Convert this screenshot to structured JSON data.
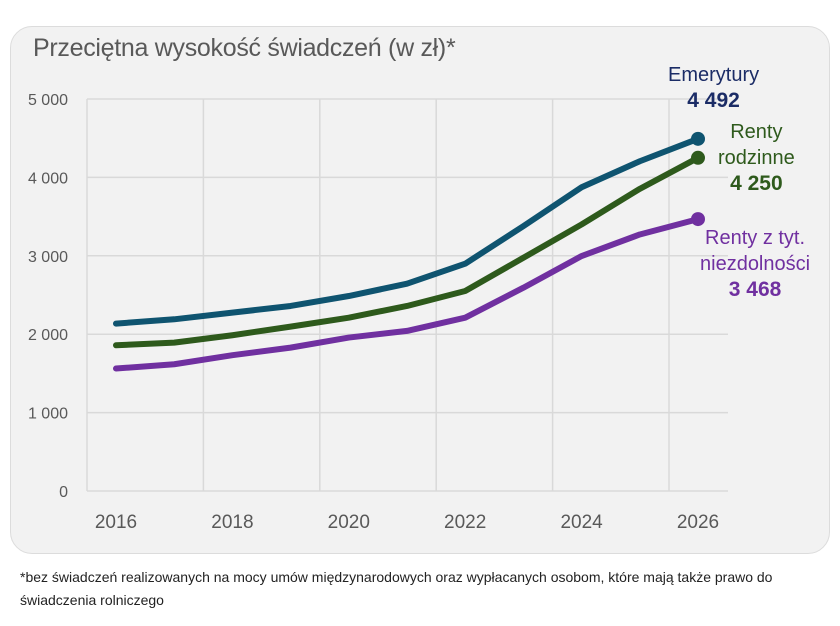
{
  "chart_data": {
    "type": "line",
    "title": "Przeciętna wysokość świadczeń (w zł)*",
    "xlabel": "",
    "ylabel": "",
    "x": [
      2016,
      2017,
      2018,
      2019,
      2020,
      2021,
      2022,
      2023,
      2024,
      2025,
      2026
    ],
    "x_tick_labels": [
      "2016",
      "2018",
      "2020",
      "2022",
      "2024",
      "2026"
    ],
    "y_tick_labels": [
      "0",
      "1 000",
      "2 000",
      "3 000",
      "4 000",
      "5 000"
    ],
    "ylim": [
      0,
      5000
    ],
    "xlim": [
      2016,
      2026
    ],
    "grid": true,
    "legend": "direct labels at right",
    "series": [
      {
        "name": "Emerytury",
        "end_label": "4 492",
        "color": "#0f5470",
        "label_color": "#1b2c66",
        "values": [
          2135,
          2190,
          2275,
          2360,
          2487,
          2644,
          2899,
          3379,
          3875,
          4206,
          4492
        ]
      },
      {
        "name": "Renty rodzinne",
        "name_lines": [
          "Renty",
          "rodzinne"
        ],
        "end_label": "4 250",
        "color": "#2e5a1c",
        "label_color": "#2e5a1c",
        "values": [
          1859,
          1893,
          1987,
          2097,
          2211,
          2360,
          2551,
          2975,
          3400,
          3854,
          4250
        ]
      },
      {
        "name": "Renty z tyt. niezdolności",
        "name_lines": [
          "Renty z tyt.",
          "niezdolności"
        ],
        "end_label": "3 468",
        "color": "#7030a0",
        "label_color": "#7030a0",
        "values": [
          1562,
          1617,
          1732,
          1829,
          1957,
          2042,
          2211,
          2593,
          2997,
          3272,
          3468
        ]
      }
    ]
  },
  "footnote": "*bez świadczeń realizowanych na mocy umów międzynarodowych oraz wypłacanych osobom, które mają także prawo do świadczenia rolniczego"
}
